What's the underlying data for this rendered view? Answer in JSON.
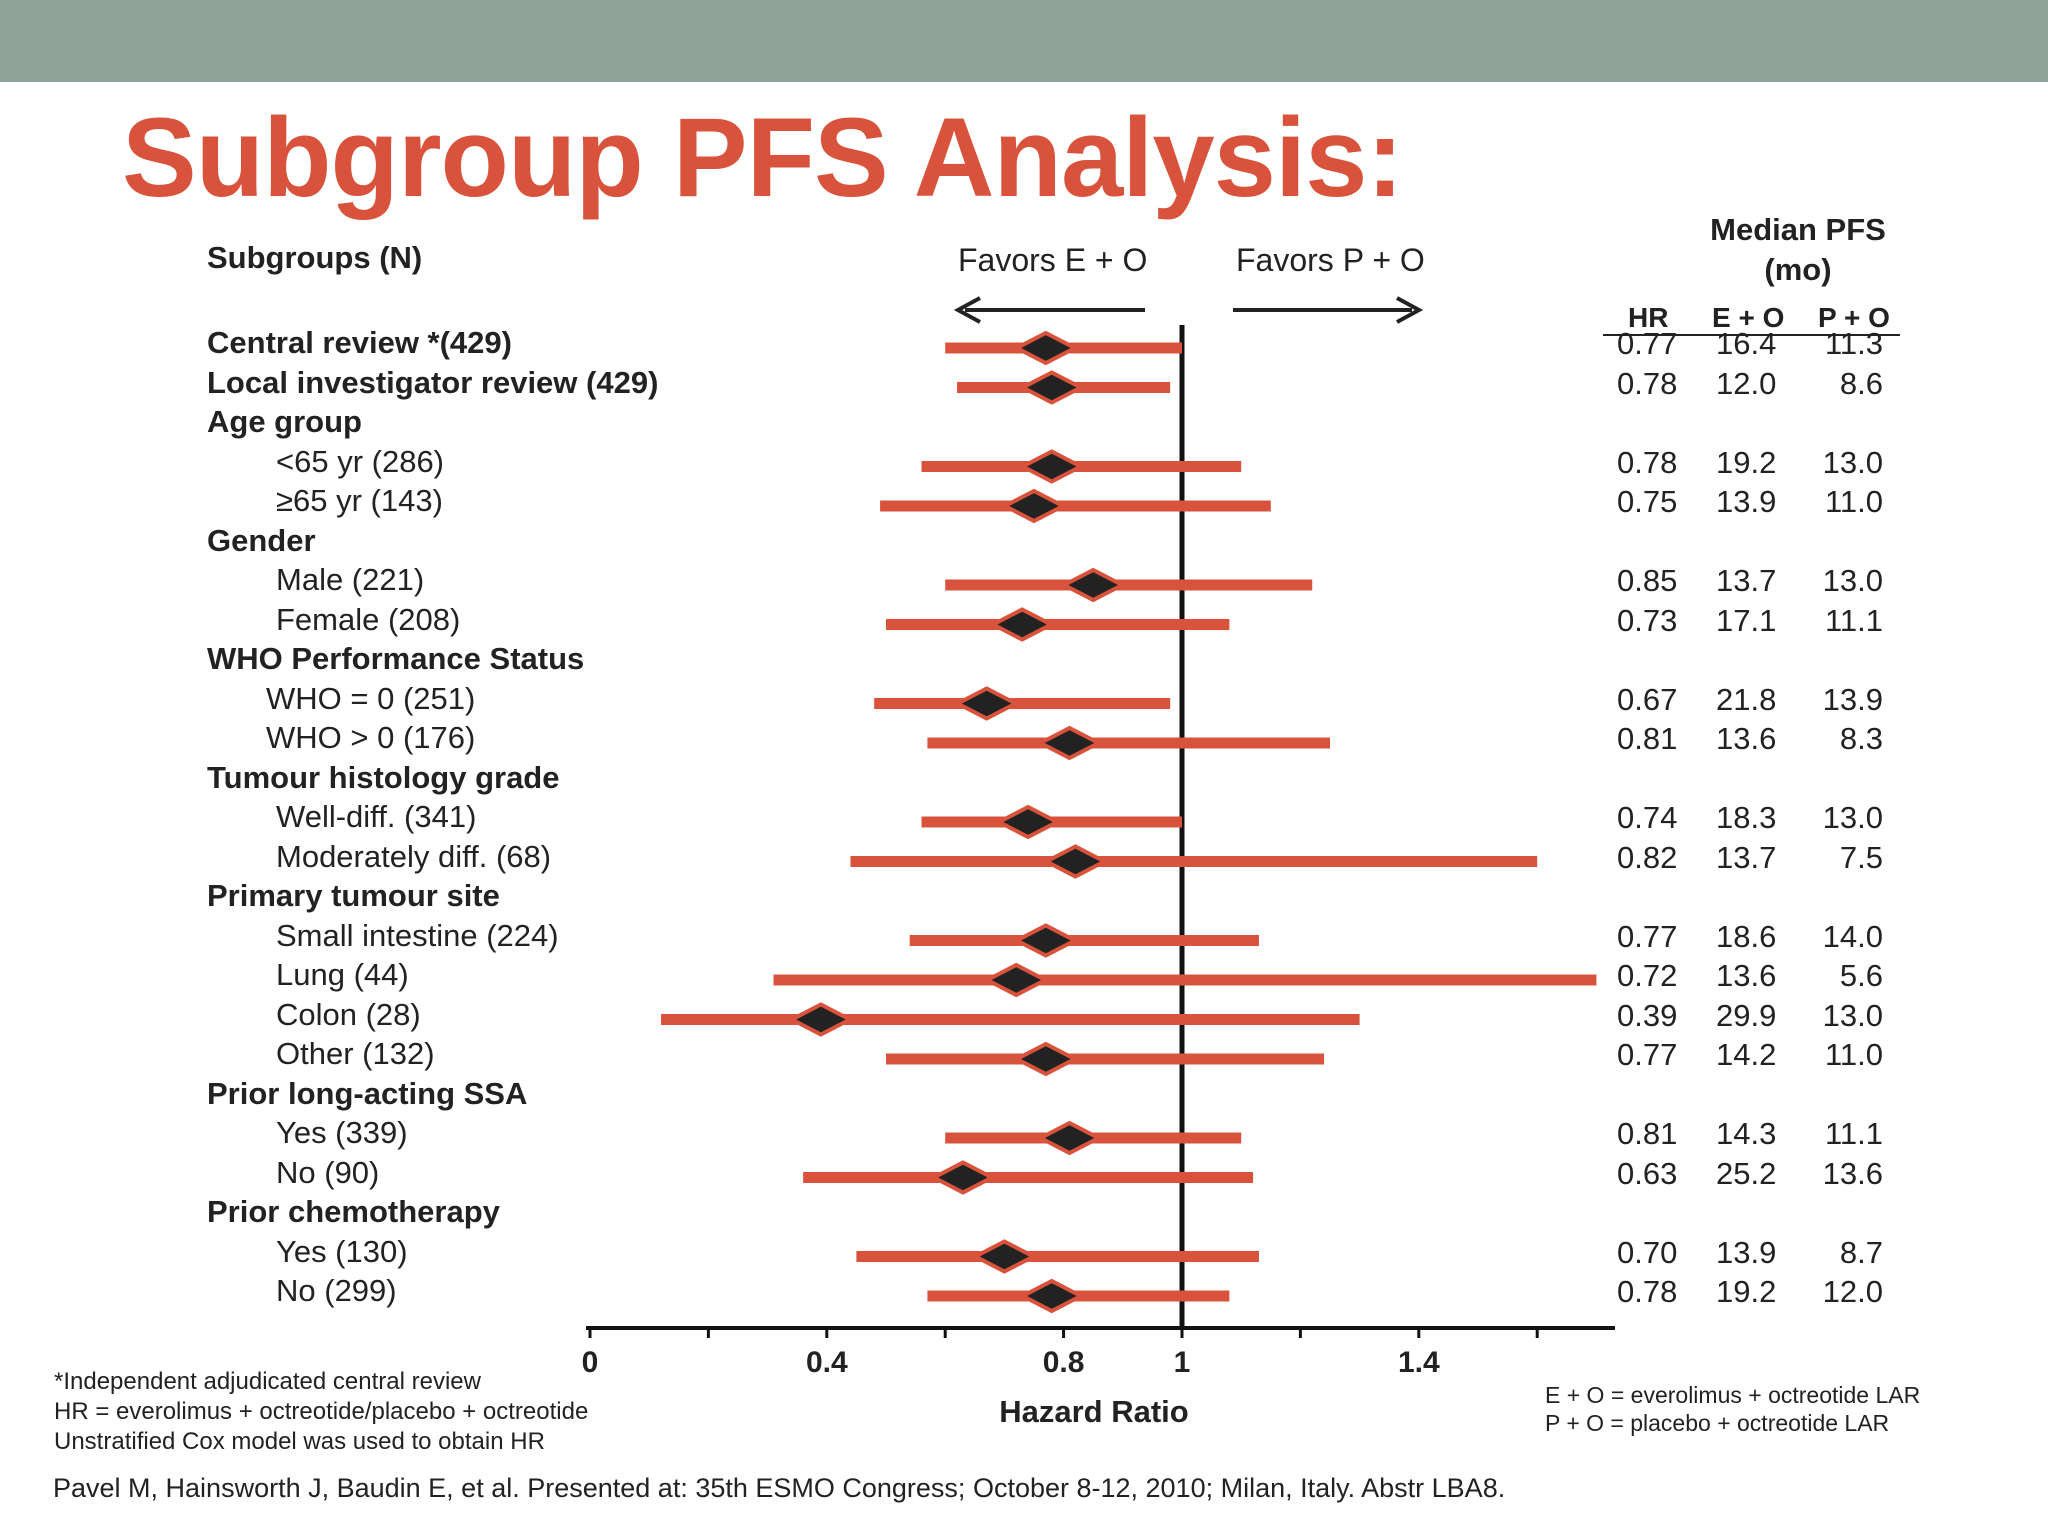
{
  "title": "Subgroup PFS Analysis:",
  "subgroups_header": "Subgroups (N)",
  "favors_left": "Favors E + O",
  "favors_right": "Favors P + O",
  "median_header_line1": "Median PFS",
  "median_header_line2": "(mo)",
  "col_headers": [
    "HR",
    "E + O",
    "P + O"
  ],
  "colors": {
    "topbar": "#8fa399",
    "title": "#d9533c",
    "ci_bar": "#d9533c",
    "point": "#222222"
  },
  "chart_data": {
    "type": "forest",
    "xlabel": "Hazard Ratio",
    "xlim": [
      0,
      1.72
    ],
    "xticks": [
      "0",
      "0.4",
      "0.8",
      "1",
      "1.4"
    ],
    "xtick_values": [
      0,
      0.4,
      0.8,
      1,
      1.4
    ],
    "reference_line": 1,
    "rows": [
      {
        "label": "Central review *(429)",
        "kind": "header",
        "hr": 0.77,
        "lo": 0.6,
        "hi": 1.0,
        "hr_text": "0.77",
        "eo": "16.4",
        "po": "11.3"
      },
      {
        "label": "Local investigator review (429)",
        "kind": "header",
        "hr": 0.78,
        "lo": 0.62,
        "hi": 0.98,
        "hr_text": "0.78",
        "eo": "12.0",
        "po": "8.6"
      },
      {
        "label": "Age group",
        "kind": "group"
      },
      {
        "label": "<65 yr (286)",
        "kind": "item",
        "hr": 0.78,
        "lo": 0.56,
        "hi": 1.1,
        "hr_text": "0.78",
        "eo": "19.2",
        "po": "13.0"
      },
      {
        "label": "≥65 yr (143)",
        "kind": "item",
        "hr": 0.75,
        "lo": 0.49,
        "hi": 1.15,
        "hr_text": "0.75",
        "eo": "13.9",
        "po": "11.0"
      },
      {
        "label": "Gender",
        "kind": "group"
      },
      {
        "label": "Male (221)",
        "kind": "item",
        "hr": 0.85,
        "lo": 0.6,
        "hi": 1.22,
        "hr_text": "0.85",
        "eo": "13.7",
        "po": "13.0"
      },
      {
        "label": "Female (208)",
        "kind": "item",
        "hr": 0.73,
        "lo": 0.5,
        "hi": 1.08,
        "hr_text": "0.73",
        "eo": "17.1",
        "po": "11.1"
      },
      {
        "label": "WHO Performance Status",
        "kind": "group"
      },
      {
        "label": "WHO = 0 (251)",
        "kind": "item2",
        "hr": 0.67,
        "lo": 0.48,
        "hi": 0.98,
        "hr_text": "0.67",
        "eo": "21.8",
        "po": "13.9"
      },
      {
        "label": "WHO > 0 (176)",
        "kind": "item2",
        "hr": 0.81,
        "lo": 0.57,
        "hi": 1.25,
        "hr_text": "0.81",
        "eo": "13.6",
        "po": "8.3"
      },
      {
        "label": "Tumour histology grade",
        "kind": "group"
      },
      {
        "label": "Well-diff. (341)",
        "kind": "item",
        "hr": 0.74,
        "lo": 0.56,
        "hi": 1.0,
        "hr_text": "0.74",
        "eo": "18.3",
        "po": "13.0"
      },
      {
        "label": "Moderately diff. (68)",
        "kind": "item",
        "hr": 0.82,
        "lo": 0.44,
        "hi": 1.6,
        "hr_text": "0.82",
        "eo": "13.7",
        "po": "7.5"
      },
      {
        "label": "Primary tumour site",
        "kind": "group"
      },
      {
        "label": "Small intestine (224)",
        "kind": "item",
        "hr": 0.77,
        "lo": 0.54,
        "hi": 1.13,
        "hr_text": "0.77",
        "eo": "18.6",
        "po": "14.0"
      },
      {
        "label": "Lung (44)",
        "kind": "item",
        "hr": 0.72,
        "lo": 0.31,
        "hi": 1.7,
        "hr_text": "0.72",
        "eo": "13.6",
        "po": "5.6"
      },
      {
        "label": "Colon (28)",
        "kind": "item",
        "hr": 0.39,
        "lo": 0.12,
        "hi": 1.3,
        "hr_text": "0.39",
        "eo": "29.9",
        "po": "13.0"
      },
      {
        "label": "Other (132)",
        "kind": "item",
        "hr": 0.77,
        "lo": 0.5,
        "hi": 1.24,
        "hr_text": "0.77",
        "eo": "14.2",
        "po": "11.0"
      },
      {
        "label": "Prior long-acting SSA",
        "kind": "group"
      },
      {
        "label": "Yes (339)",
        "kind": "item",
        "hr": 0.81,
        "lo": 0.6,
        "hi": 1.1,
        "hr_text": "0.81",
        "eo": "14.3",
        "po": "11.1"
      },
      {
        "label": "No (90)",
        "kind": "item",
        "hr": 0.63,
        "lo": 0.36,
        "hi": 1.12,
        "hr_text": "0.63",
        "eo": "25.2",
        "po": "13.6"
      },
      {
        "label": "Prior chemotherapy",
        "kind": "group"
      },
      {
        "label": "Yes (130)",
        "kind": "item",
        "hr": 0.7,
        "lo": 0.45,
        "hi": 1.13,
        "hr_text": "0.70",
        "eo": "13.9",
        "po": "8.7"
      },
      {
        "label": "No (299)",
        "kind": "item",
        "hr": 0.78,
        "lo": 0.57,
        "hi": 1.08,
        "hr_text": "0.78",
        "eo": "19.2",
        "po": "12.0"
      }
    ]
  },
  "footnotes": [
    "*Independent adjudicated central review",
    "HR = everolimus + octreotide/placebo + octreotide",
    "Unstratified Cox model was used to obtain HR"
  ],
  "legend": [
    "E + O = everolimus + octreotide LAR",
    "P + O = placebo + octreotide LAR"
  ],
  "citation": "Pavel M, Hainsworth J, Baudin E, et al. Presented at: 35th ESMO Congress; October 8-12, 2010; Milan, Italy. Abstr LBA8."
}
